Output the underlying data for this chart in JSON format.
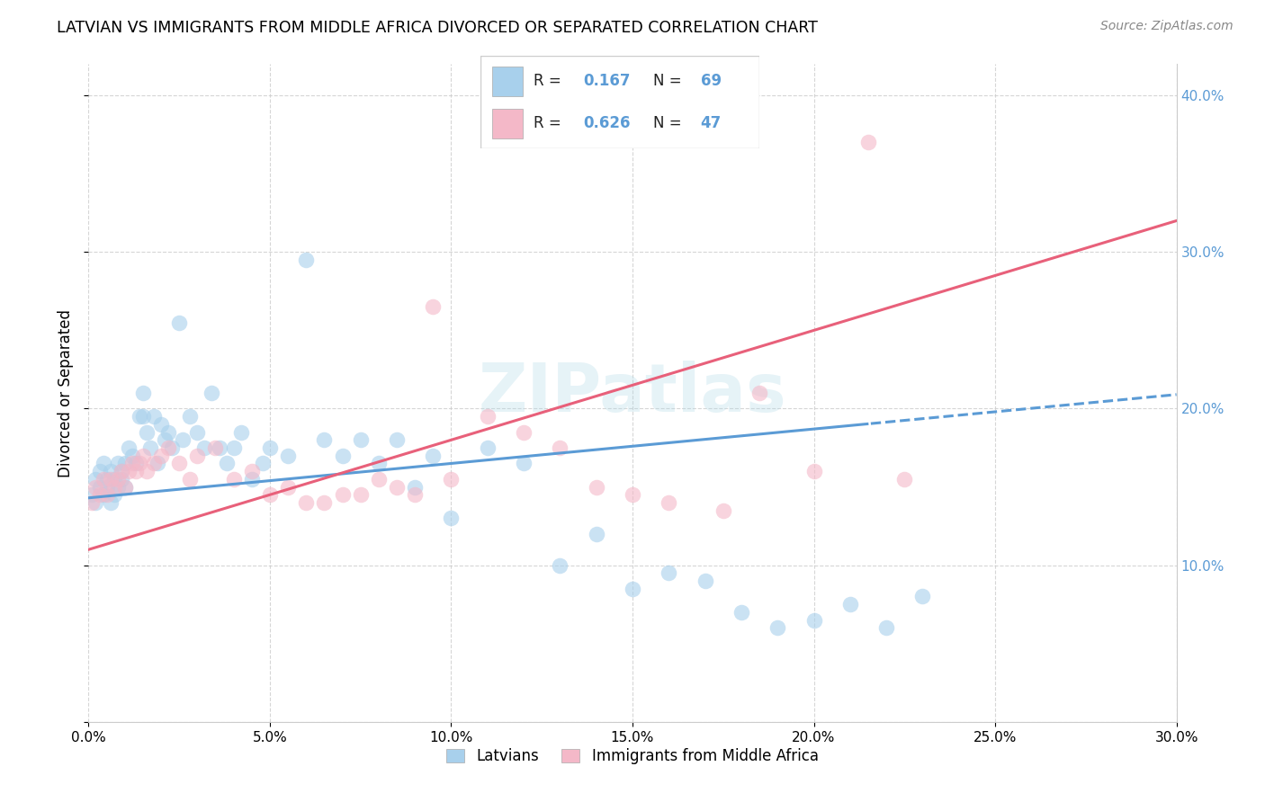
{
  "title": "LATVIAN VS IMMIGRANTS FROM MIDDLE AFRICA DIVORCED OR SEPARATED CORRELATION CHART",
  "source": "Source: ZipAtlas.com",
  "ylabel": "Divorced or Separated",
  "xlim": [
    0.0,
    0.3
  ],
  "ylim": [
    0.0,
    0.42
  ],
  "xticks": [
    0.0,
    0.05,
    0.1,
    0.15,
    0.2,
    0.25,
    0.3
  ],
  "yticks": [
    0.0,
    0.1,
    0.2,
    0.3,
    0.4
  ],
  "right_yticks": [
    0.1,
    0.2,
    0.3,
    0.4
  ],
  "legend_labels": [
    "Latvians",
    "Immigrants from Middle Africa"
  ],
  "R_latvian": 0.167,
  "N_latvian": 69,
  "R_immigrant": 0.626,
  "N_immigrant": 47,
  "blue_color": "#a8d0ec",
  "pink_color": "#f4b8c8",
  "blue_line_color": "#5b9bd5",
  "pink_line_color": "#e8607a",
  "blue_tick_color": "#5b9bd5",
  "watermark": "ZIPatlas",
  "latvian_x": [
    0.001,
    0.002,
    0.002,
    0.003,
    0.003,
    0.004,
    0.004,
    0.005,
    0.005,
    0.006,
    0.006,
    0.007,
    0.007,
    0.008,
    0.008,
    0.009,
    0.009,
    0.01,
    0.01,
    0.011,
    0.012,
    0.013,
    0.014,
    0.015,
    0.015,
    0.016,
    0.017,
    0.018,
    0.019,
    0.02,
    0.021,
    0.022,
    0.023,
    0.025,
    0.026,
    0.028,
    0.03,
    0.032,
    0.034,
    0.036,
    0.038,
    0.04,
    0.042,
    0.045,
    0.048,
    0.05,
    0.055,
    0.06,
    0.065,
    0.07,
    0.075,
    0.08,
    0.085,
    0.09,
    0.095,
    0.1,
    0.11,
    0.12,
    0.13,
    0.14,
    0.15,
    0.16,
    0.17,
    0.18,
    0.19,
    0.2,
    0.21,
    0.22,
    0.23
  ],
  "latvian_y": [
    0.145,
    0.14,
    0.155,
    0.15,
    0.16,
    0.145,
    0.165,
    0.155,
    0.15,
    0.14,
    0.16,
    0.155,
    0.145,
    0.15,
    0.165,
    0.155,
    0.16,
    0.15,
    0.165,
    0.175,
    0.17,
    0.165,
    0.195,
    0.195,
    0.21,
    0.185,
    0.175,
    0.195,
    0.165,
    0.19,
    0.18,
    0.185,
    0.175,
    0.255,
    0.18,
    0.195,
    0.185,
    0.175,
    0.21,
    0.175,
    0.165,
    0.175,
    0.185,
    0.155,
    0.165,
    0.175,
    0.17,
    0.295,
    0.18,
    0.17,
    0.18,
    0.165,
    0.18,
    0.15,
    0.17,
    0.13,
    0.175,
    0.165,
    0.1,
    0.12,
    0.085,
    0.095,
    0.09,
    0.07,
    0.06,
    0.065,
    0.075,
    0.06,
    0.08
  ],
  "immigrant_x": [
    0.001,
    0.002,
    0.003,
    0.004,
    0.005,
    0.006,
    0.007,
    0.008,
    0.009,
    0.01,
    0.011,
    0.012,
    0.013,
    0.014,
    0.015,
    0.016,
    0.018,
    0.02,
    0.022,
    0.025,
    0.028,
    0.03,
    0.035,
    0.04,
    0.045,
    0.05,
    0.055,
    0.06,
    0.065,
    0.07,
    0.075,
    0.08,
    0.085,
    0.09,
    0.095,
    0.1,
    0.11,
    0.12,
    0.13,
    0.14,
    0.15,
    0.16,
    0.175,
    0.185,
    0.2,
    0.215,
    0.225
  ],
  "immigrant_y": [
    0.14,
    0.15,
    0.145,
    0.155,
    0.145,
    0.155,
    0.15,
    0.155,
    0.16,
    0.15,
    0.16,
    0.165,
    0.16,
    0.165,
    0.17,
    0.16,
    0.165,
    0.17,
    0.175,
    0.165,
    0.155,
    0.17,
    0.175,
    0.155,
    0.16,
    0.145,
    0.15,
    0.14,
    0.14,
    0.145,
    0.145,
    0.155,
    0.15,
    0.145,
    0.265,
    0.155,
    0.195,
    0.185,
    0.175,
    0.15,
    0.145,
    0.14,
    0.135,
    0.21,
    0.16,
    0.37,
    0.155
  ]
}
